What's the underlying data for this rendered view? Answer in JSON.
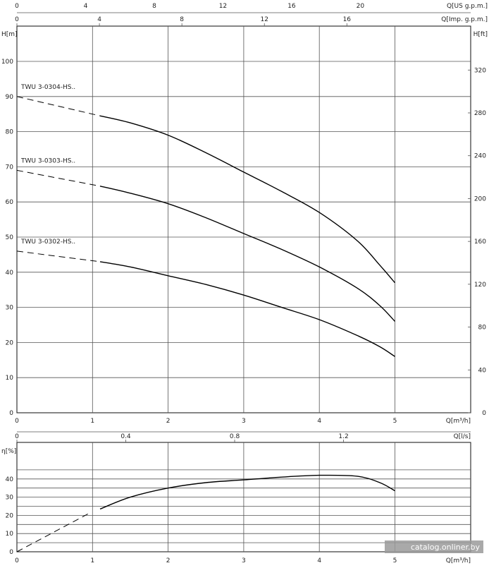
{
  "chart_data": [
    {
      "type": "line",
      "title": "",
      "xlabel": "Q[m³/h]",
      "ylabel": "H[m]",
      "ylabel_right": "H[ft]",
      "xlim": [
        0,
        6
      ],
      "ylim": [
        0,
        110
      ],
      "x_ticks": [
        "0",
        "1",
        "2",
        "3",
        "4",
        "5"
      ],
      "y_ticks": [
        "0",
        "10",
        "20",
        "30",
        "40",
        "50",
        "60",
        "70",
        "80",
        "90",
        "100"
      ],
      "right_ticks": [
        "0",
        "40",
        "80",
        "120",
        "160",
        "200",
        "240",
        "280",
        "320"
      ],
      "top_axis_us_label": "Q[US g.p.m.]",
      "top_axis_us_ticks": [
        "0",
        "4",
        "8",
        "12",
        "16",
        "20"
      ],
      "top_axis_imp_label": "Q[Imp. g.p.m.]",
      "top_axis_imp_ticks": [
        "0",
        "4",
        "8",
        "12",
        "16"
      ],
      "grid": true,
      "series": [
        {
          "name": "TWU 3-0304-HS..",
          "x": [
            1.1,
            1.5,
            2.0,
            2.5,
            3.0,
            3.5,
            4.0,
            4.5,
            4.8,
            5.0
          ],
          "y": [
            84.5,
            82.5,
            79,
            74,
            68.5,
            63,
            57,
            49,
            42,
            37
          ],
          "extension_start": [
            0,
            90
          ]
        },
        {
          "name": "TWU 3-0303-HS..",
          "x": [
            1.1,
            1.5,
            2.0,
            2.5,
            3.0,
            3.5,
            4.0,
            4.5,
            4.8,
            5.0
          ],
          "y": [
            64.5,
            62.5,
            59.5,
            55.5,
            51,
            46.5,
            41.5,
            35.5,
            30.5,
            26
          ],
          "extension_start": [
            0,
            69
          ]
        },
        {
          "name": "TWU 3-0302-HS..",
          "x": [
            1.1,
            1.5,
            2.0,
            2.5,
            3.0,
            3.5,
            4.0,
            4.5,
            4.8,
            5.0
          ],
          "y": [
            43,
            41.5,
            39,
            36.5,
            33.5,
            30,
            26.5,
            22,
            18.8,
            16
          ],
          "extension_start": [
            0,
            46
          ]
        }
      ]
    },
    {
      "type": "line",
      "title": "",
      "xlabel": "Q[m³/h]",
      "ylabel": "η[%]",
      "xlim": [
        0,
        6
      ],
      "ylim": [
        0,
        50
      ],
      "x_ticks": [
        "0",
        "1",
        "2",
        "3",
        "4",
        "5"
      ],
      "y_ticks": [
        "0",
        "10",
        "20",
        "30",
        "40"
      ],
      "top_axis_ls_label": "Q[l/s]",
      "top_axis_ls_ticks": [
        "0",
        "0.4",
        "0.8",
        "1.2"
      ],
      "grid": true,
      "series": [
        {
          "x": [
            1.1,
            1.5,
            2.0,
            2.5,
            3.0,
            3.5,
            4.0,
            4.5,
            4.8,
            5.0
          ],
          "y": [
            23.5,
            30,
            35,
            38,
            39.5,
            41,
            42,
            41.5,
            38,
            33.5
          ],
          "extension_start": [
            0,
            0
          ]
        }
      ]
    }
  ],
  "watermark": "catalog.onliner.by"
}
